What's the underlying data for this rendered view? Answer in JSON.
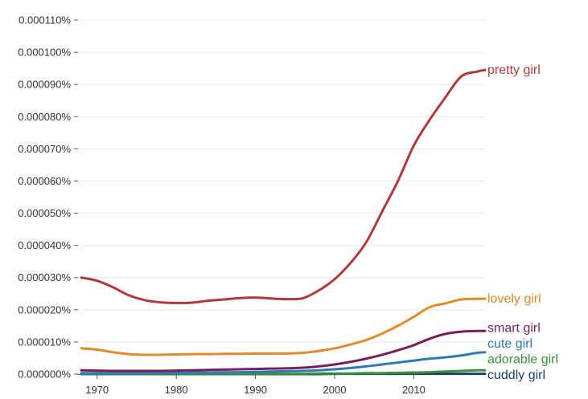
{
  "chart_data": {
    "type": "line",
    "title": "",
    "xlabel": "",
    "ylabel": "",
    "xlim": [
      1968,
      2019
    ],
    "ylim": [
      0.0,
      0.00011
    ],
    "x_ticks": [
      1970,
      1980,
      1990,
      2000,
      2010
    ],
    "y_ticks": [
      0.0,
      1e-05,
      2e-05,
      3e-05,
      4e-05,
      5e-05,
      6e-05,
      7e-05,
      8e-05,
      9e-05,
      0.0001,
      0.00011
    ],
    "y_tick_labels": [
      "0.000000%",
      "0.000010%",
      "0.000020%",
      "0.000030%",
      "0.000040%",
      "0.000050%",
      "0.000060%",
      "0.000070%",
      "0.000080%",
      "0.000090%",
      "0.000100%",
      "0.000110%"
    ],
    "x_tick_labels": [
      "1970",
      "1980",
      "1990",
      "2000",
      "2010"
    ],
    "grid": "horizontal",
    "legend": "inline labels at right end of lines",
    "x": [
      1968,
      1970,
      1972,
      1974,
      1976,
      1978,
      1980,
      1982,
      1984,
      1986,
      1988,
      1990,
      1992,
      1994,
      1996,
      1998,
      2000,
      2002,
      2004,
      2006,
      2008,
      2010,
      2012,
      2014,
      2016,
      2018,
      2019
    ],
    "series": [
      {
        "name": "pretty girl",
        "color": "#b03a3a",
        "values": [
          3e-05,
          2.9e-05,
          2.7e-05,
          2.45e-05,
          2.3e-05,
          2.23e-05,
          2.21e-05,
          2.22e-05,
          2.28e-05,
          2.32e-05,
          2.36e-05,
          2.38e-05,
          2.35e-05,
          2.33e-05,
          2.36e-05,
          2.6e-05,
          2.95e-05,
          3.45e-05,
          4.1e-05,
          5.05e-05,
          6e-05,
          7.1e-05,
          7.9e-05,
          8.6e-05,
          9.25e-05,
          9.4e-05,
          9.45e-05
        ]
      },
      {
        "name": "lovely girl",
        "color": "#e08a2a",
        "values": [
          8e-06,
          7.6e-06,
          6.8e-06,
          6.2e-06,
          6e-06,
          6e-06,
          6.1e-06,
          6.2e-06,
          6.2e-06,
          6.3e-06,
          6.3e-06,
          6.4e-06,
          6.4e-06,
          6.4e-06,
          6.6e-06,
          7.2e-06,
          8e-06,
          9.2e-06,
          1.06e-05,
          1.26e-05,
          1.5e-05,
          1.78e-05,
          2.08e-05,
          2.2e-05,
          2.32e-05,
          2.34e-05,
          2.34e-05
        ]
      },
      {
        "name": "smart girl",
        "color": "#7a1e5a",
        "values": [
          1.2e-06,
          1.1e-06,
          1e-06,
          1e-06,
          1e-06,
          1e-06,
          1.1e-06,
          1.2e-06,
          1.3e-06,
          1.4e-06,
          1.5e-06,
          1.6e-06,
          1.7e-06,
          1.8e-06,
          2e-06,
          2.4e-06,
          3e-06,
          3.8e-06,
          4.8e-06,
          6e-06,
          7.4e-06,
          9e-06,
          1.1e-05,
          1.25e-05,
          1.32e-05,
          1.34e-05,
          1.34e-05
        ]
      },
      {
        "name": "cute girl",
        "color": "#2c7bb6",
        "values": [
          3e-07,
          3e-07,
          3e-07,
          3e-07,
          3e-07,
          4e-07,
          4e-07,
          5e-07,
          5e-07,
          6e-07,
          6e-07,
          7e-07,
          8e-07,
          9e-07,
          1e-06,
          1.2e-06,
          1.5e-06,
          1.9e-06,
          2.4e-06,
          3e-06,
          3.6e-06,
          4.2e-06,
          4.8e-06,
          5.2e-06,
          5.8e-06,
          6.6e-06,
          6.8e-06
        ]
      },
      {
        "name": "adorable girl",
        "color": "#3a8f3a",
        "values": [
          1e-07,
          1e-07,
          1e-07,
          1e-07,
          1e-07,
          1e-07,
          1e-07,
          1e-07,
          1e-07,
          1e-07,
          1e-07,
          1e-07,
          1e-07,
          1e-07,
          1e-07,
          2e-07,
          2e-07,
          2e-07,
          3e-07,
          3e-07,
          4e-07,
          5e-07,
          6e-07,
          8e-07,
          1e-06,
          1.2e-06,
          1.2e-06
        ]
      },
      {
        "name": "cuddly girl",
        "color": "#1f3f6a",
        "values": [
          0.0,
          0.0,
          0.0,
          0.0,
          0.0,
          0.0,
          0.0,
          0.0,
          0.0,
          0.0,
          0.0,
          0.0,
          0.0,
          0.0,
          0.0,
          0.0,
          1e-07,
          1e-07,
          1e-07,
          1e-07,
          1e-07,
          1e-07,
          1e-07,
          1e-07,
          1e-07,
          1e-07,
          1e-07
        ]
      }
    ]
  }
}
